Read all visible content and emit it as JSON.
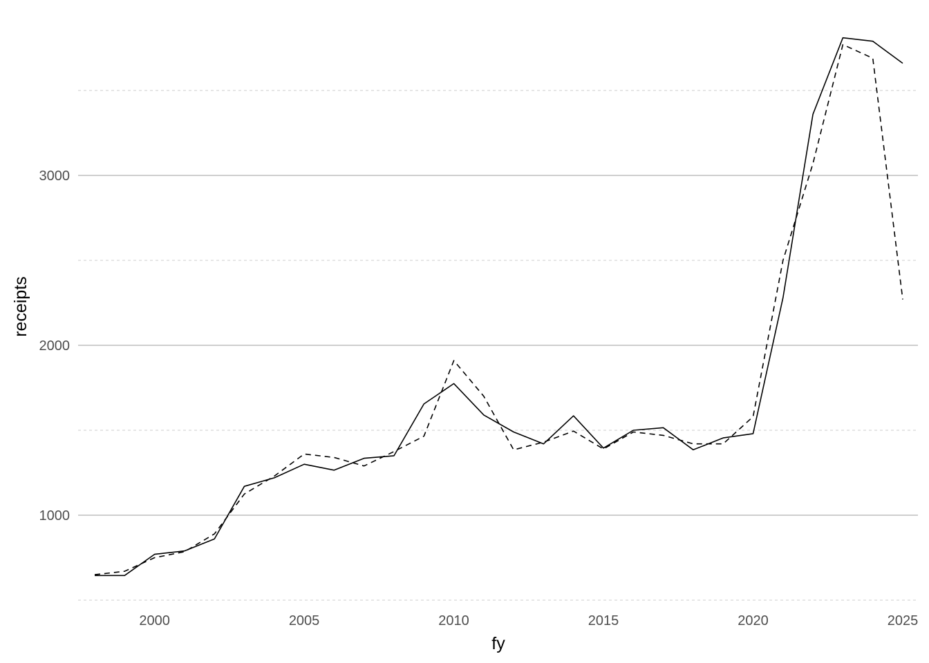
{
  "chart_data": {
    "type": "line",
    "title": "",
    "xlabel": "fy",
    "ylabel": "receipts",
    "xlim": [
      1998,
      2025
    ],
    "ylim": [
      500,
      3850
    ],
    "x_ticks": [
      2000,
      2005,
      2010,
      2015,
      2020,
      2025
    ],
    "y_ticks": [
      1000,
      2000,
      3000
    ],
    "y_minor_ticks": [
      500,
      1500,
      2500,
      3500
    ],
    "grid": true,
    "legend": "none",
    "x": [
      1998,
      1999,
      2000,
      2001,
      2002,
      2003,
      2004,
      2005,
      2006,
      2007,
      2008,
      2009,
      2010,
      2011,
      2012,
      2013,
      2014,
      2015,
      2016,
      2017,
      2018,
      2019,
      2020,
      2021,
      2022,
      2023,
      2024,
      2025
    ],
    "series": [
      {
        "line_style": "solid",
        "color": "#000000",
        "values": [
          645,
          645,
          770,
          790,
          860,
          1170,
          1220,
          1300,
          1265,
          1335,
          1350,
          1655,
          1775,
          1590,
          1490,
          1420,
          1585,
          1395,
          1500,
          1515,
          1385,
          1455,
          1480,
          2280,
          3360,
          3810,
          3790,
          3660
        ]
      },
      {
        "line_style": "dashed",
        "color": "#000000",
        "values": [
          650,
          670,
          750,
          785,
          890,
          1125,
          1230,
          1360,
          1340,
          1290,
          1375,
          1465,
          1910,
          1700,
          1385,
          1430,
          1495,
          1390,
          1490,
          1470,
          1420,
          1420,
          1580,
          2500,
          3070,
          3770,
          3690,
          2270
        ]
      }
    ]
  }
}
